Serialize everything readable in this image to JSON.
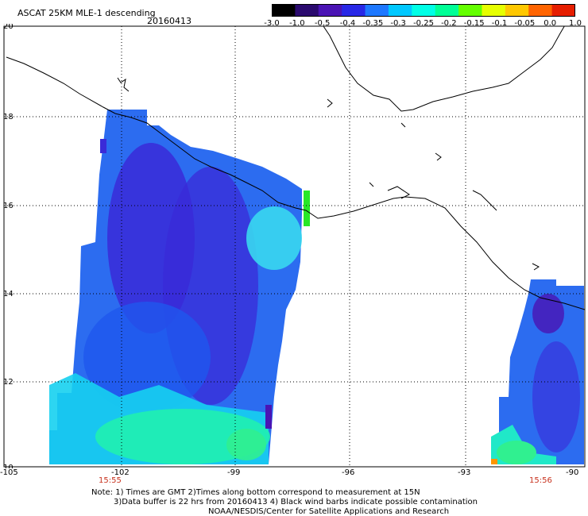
{
  "header": {
    "title": "ASCAT 25KM MLE-1 descending",
    "date": "20160413"
  },
  "colorbar": {
    "labels": [
      "-3.0",
      "-1.0",
      "-0.5",
      "-0.4",
      "-0.35",
      "-0.3",
      "-0.25",
      "-0.2",
      "-0.15",
      "-0.1",
      "-0.05",
      "0.0",
      "1.0"
    ],
    "colors": [
      "#000000",
      "#2a0a6e",
      "#4a14b4",
      "#2828e6",
      "#1e78ff",
      "#00c8ff",
      "#00ffe6",
      "#00ff96",
      "#64ff00",
      "#e6ff00",
      "#ffc800",
      "#ff6400",
      "#e61e00"
    ]
  },
  "map": {
    "lat_labels": [
      "20",
      "18",
      "16",
      "14",
      "12",
      "10"
    ],
    "lon_labels": [
      "-105",
      "-102",
      "-99",
      "-96",
      "-93",
      "-90"
    ],
    "times": [
      "15:55",
      "15:56"
    ],
    "icons": [
      "coastline-icon",
      "swath-icon"
    ]
  },
  "notes": {
    "line1": "Note: 1) Times are GMT 2)Times along bottom correspond to measurement at 15N",
    "line2": "3)Data buffer is 22 hrs from 20160413 4) Black wind barbs indicate possible contamination",
    "line3": "NOAA/NESDIS/Center for Satellite Applications and Research"
  }
}
